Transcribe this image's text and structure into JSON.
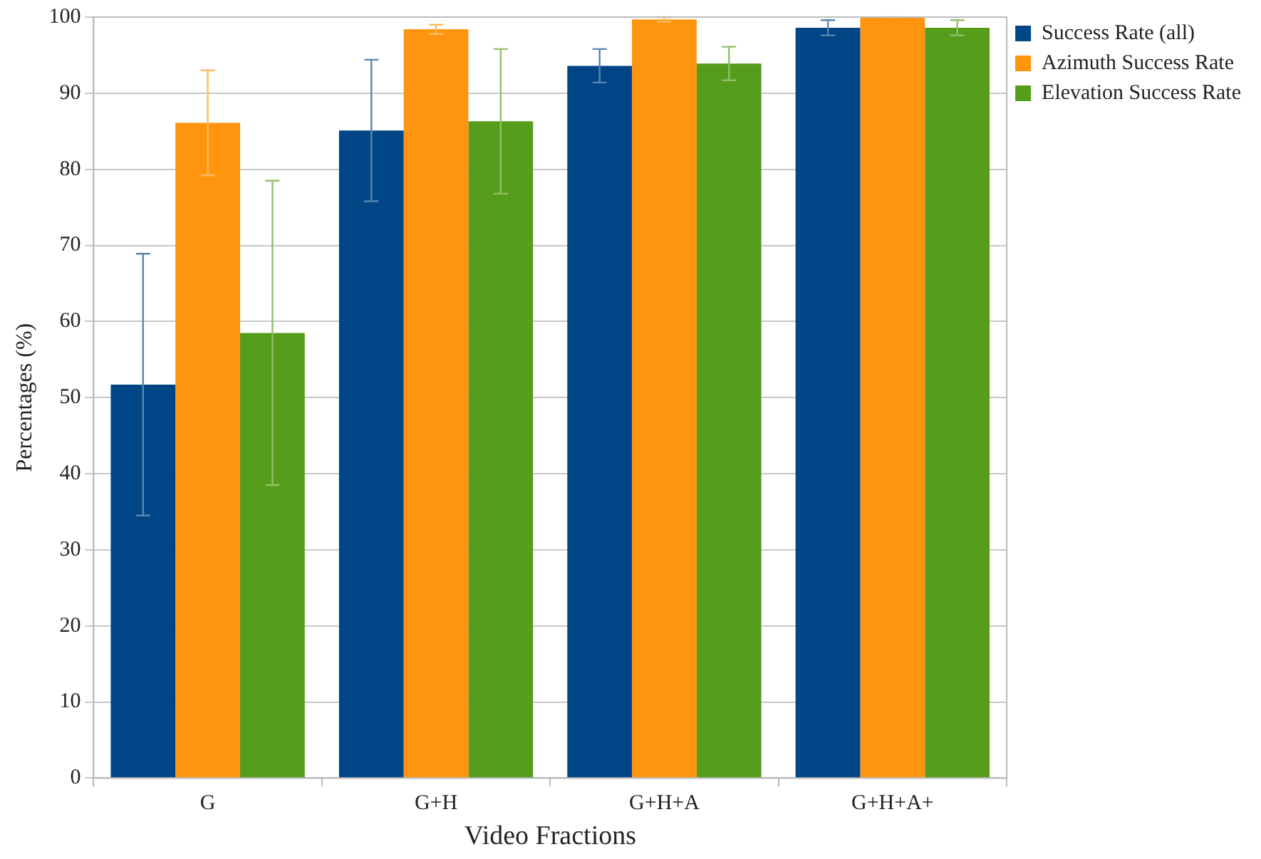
{
  "chart_data": {
    "type": "bar",
    "xlabel": "Video Fractions",
    "ylabel": "Percentages (%)",
    "categories": [
      "G",
      "G+H",
      "G+H+A",
      "G+H+A+"
    ],
    "series": [
      {
        "name": "Success Rate (all)",
        "color": "#004586",
        "values": [
          51.7,
          85.1,
          93.6,
          98.6
        ],
        "errors": [
          17.2,
          9.3,
          2.2,
          1
        ]
      },
      {
        "name": "Azimuth Success Rate",
        "color": "#ff950e",
        "values": [
          86.1,
          98.4,
          99.7,
          100
        ],
        "errors": [
          6.9,
          0.6,
          0.3,
          0
        ]
      },
      {
        "name": "Elevation Success Rate",
        "color": "#579d1c",
        "values": [
          58.5,
          86.3,
          93.9,
          98.6
        ],
        "errors": [
          20,
          9.5,
          2.2,
          1
        ]
      }
    ],
    "ylim": [
      0,
      100
    ],
    "yticks": [
      0,
      10,
      20,
      30,
      40,
      50,
      60,
      70,
      80,
      90,
      100
    ],
    "grid": "y",
    "legend": "top right"
  }
}
